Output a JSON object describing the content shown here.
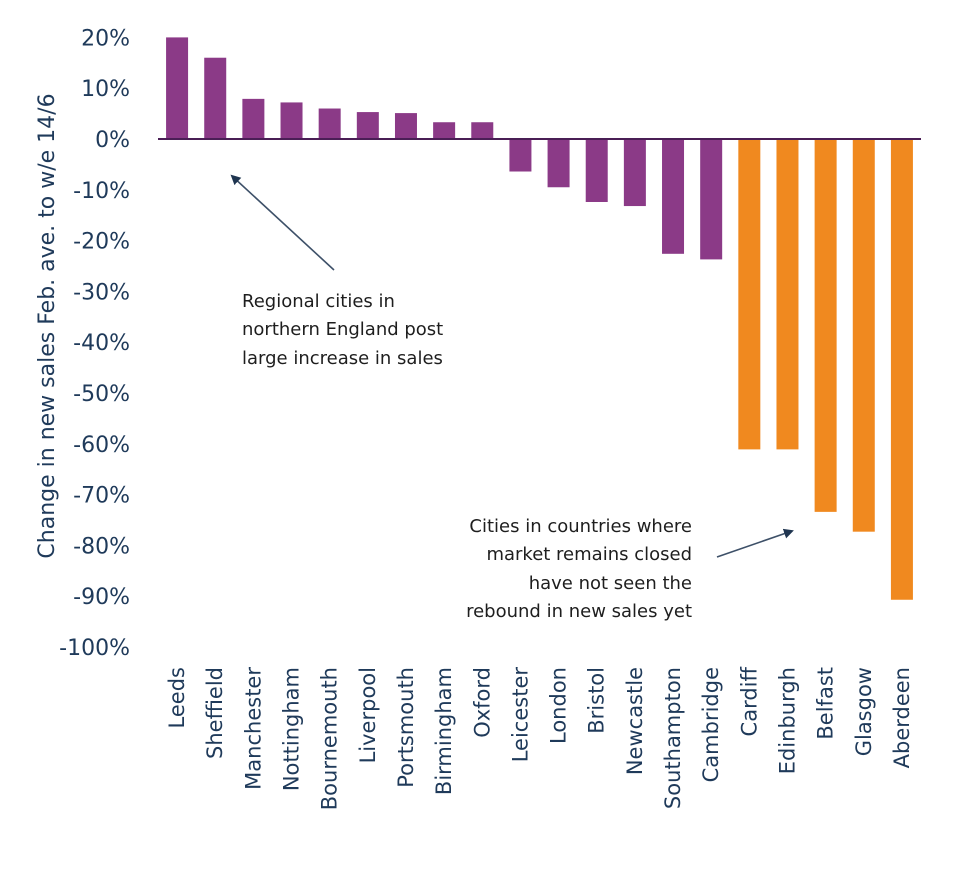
{
  "chart_data": {
    "type": "bar",
    "title": "",
    "xlabel": "",
    "ylabel": "Change in new sales Feb. ave. to w/e 14/6",
    "ylim": [
      -100,
      20
    ],
    "yticks": [
      20,
      10,
      0,
      -10,
      -20,
      -30,
      -40,
      -50,
      -60,
      -70,
      -80,
      -90,
      -100
    ],
    "ytick_labels": [
      "20%",
      "10%",
      "0%",
      "-10%",
      "-20%",
      "-30%",
      "-40%",
      "-50%",
      "-60%",
      "-70%",
      "-80%",
      "-90%",
      "-100%"
    ],
    "grid": false,
    "legend": "none",
    "categories": [
      "Leeds",
      "Sheffield",
      "Manchester",
      "Nottingham",
      "Bournemouth",
      "Liverpool",
      "Portsmouth",
      "Birmingham",
      "Oxford",
      "Leicester",
      "London",
      "Bristol",
      "Newcastle",
      "Southampton",
      "Cambridge",
      "Cardiff",
      "Edinburgh",
      "Belfast",
      "Glasgow",
      "Aberdeen"
    ],
    "values": [
      20.0,
      16.0,
      7.9,
      7.2,
      6.0,
      5.3,
      5.1,
      3.3,
      3.3,
      -6.4,
      -9.5,
      -12.4,
      -13.2,
      -22.6,
      -23.7,
      -61.1,
      -61.1,
      -73.4,
      -77.3,
      -90.7
    ],
    "groups": [
      "england",
      "england",
      "england",
      "england",
      "england",
      "england",
      "england",
      "england",
      "england",
      "england",
      "england",
      "england",
      "england",
      "england",
      "england",
      "closed",
      "closed",
      "closed",
      "closed",
      "closed"
    ],
    "colors": {
      "england": "#8b3a87",
      "closed": "#f0891f",
      "axis": "#4a1e55",
      "text": "#1f3a5a",
      "annotation": "#1e1e1e",
      "arrow": "#3d5068"
    },
    "annotations": [
      {
        "lines": [
          "Regional cities in",
          "northern England post",
          "large increase in sales"
        ],
        "points_to": "Leeds–Manchester bars"
      },
      {
        "lines": [
          "Cities in countries where",
          "market remains closed",
          "have not seen the",
          "rebound in new sales yet"
        ],
        "points_to": "Cardiff–Aberdeen bars"
      }
    ]
  }
}
